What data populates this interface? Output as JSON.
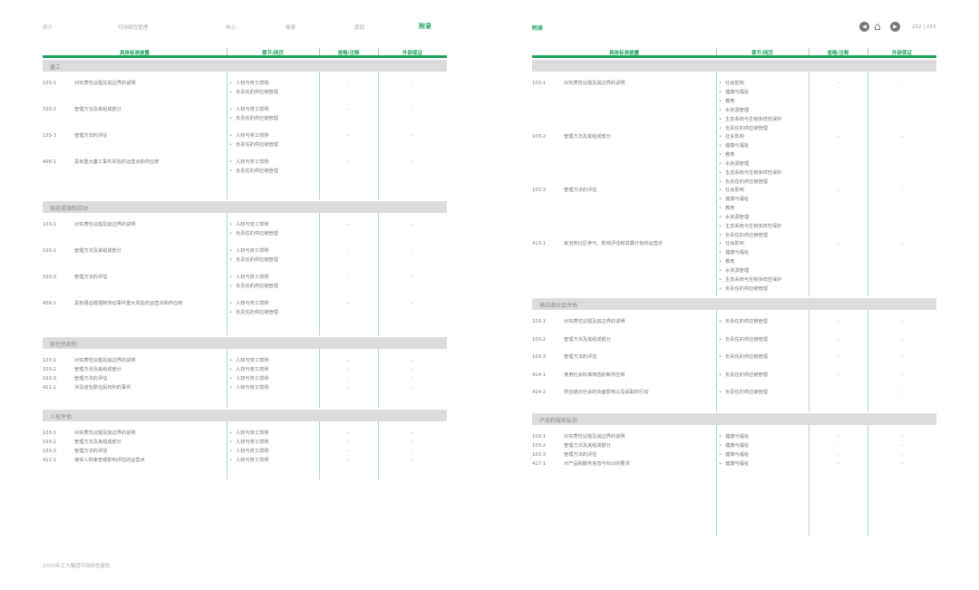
{
  "nav": {
    "items": [
      "简介",
      "可持续性管理",
      "核心",
      "健康",
      "家园",
      "附录"
    ],
    "active": 5
  },
  "header_right": {
    "section": "附录",
    "pages": "252 | 253",
    "icons": [
      "prev-icon",
      "home-icon",
      "next-icon"
    ]
  },
  "table_headers": [
    "具体标准披露",
    "章节/网页",
    "省略/注释",
    "外部保证"
  ],
  "colors": {
    "accent": "#1fa35b",
    "bar": "#dcdcdd",
    "divider": "#a9d8c7"
  },
  "footer": "2020年正大集团可持续性报告",
  "pages": [
    {
      "sections": [
        {
          "title": "童工",
          "rows": [
            {
              "code": "103-1",
              "desc": "对实质性议题及其边界的说明",
              "chapters": [
                "人权与劳工惯例",
                "负责任的供应链管理"
              ],
              "omission": "-",
              "assurance": "-"
            },
            {
              "code": "103-2",
              "desc": "管理方法及其组成部分",
              "chapters": [
                "人权与劳工惯例",
                "负责任的供应链管理"
              ],
              "omission": "-",
              "assurance": "-"
            },
            {
              "code": "103-3",
              "desc": "管理方法的评估",
              "chapters": [
                "人权与劳工惯例",
                "负责任的供应链管理"
              ],
              "omission": "-",
              "assurance": "-"
            },
            {
              "code": "408-1",
              "desc": "具有重大童工事件风险的运营点和供应商",
              "chapters": [
                "人权与劳工惯例",
                "负责任的供应链管理"
              ],
              "omission": "-",
              "assurance": "-"
            }
          ]
        },
        {
          "title": "强迫或强制劳动",
          "rows": [
            {
              "code": "103-1",
              "desc": "对实质性议题及其边界的说明",
              "chapters": [
                "人权与劳工惯例",
                "负责任的供应链管理"
              ],
              "omission": "-",
              "assurance": "-"
            },
            {
              "code": "103-2",
              "desc": "管理方法及其组成部分",
              "chapters": [
                "人权与劳工惯例",
                "负责任的供应链管理"
              ],
              "omission": "-",
              "assurance": "-"
            },
            {
              "code": "103-3",
              "desc": "管理方法的评估",
              "chapters": [
                "人权与劳工惯例",
                "负责任的供应链管理"
              ],
              "omission": "-",
              "assurance": "-"
            },
            {
              "code": "409-1",
              "desc": "具有强迫或强制劳动事件重大风险的运营点和供应商",
              "chapters": [
                "人权与劳工惯例",
                "负责任的供应链管理"
              ],
              "omission": "-",
              "assurance": "-"
            }
          ]
        },
        {
          "title": "原住民权利",
          "rows": [
            {
              "code": "103-1",
              "desc": "对实质性议题及其边界的说明",
              "chapters": [
                "人权与劳工惯例"
              ],
              "omission": "-",
              "assurance": "-"
            },
            {
              "code": "103-2",
              "desc": "管理方法及其组成部分",
              "chapters": [
                "人权与劳工惯例"
              ],
              "omission": "-",
              "assurance": "-"
            },
            {
              "code": "103-3",
              "desc": "管理方法的评估",
              "chapters": [
                "人权与劳工惯例"
              ],
              "omission": "-",
              "assurance": "-"
            },
            {
              "code": "411-1",
              "desc": "涉及侵犯原住民权利的事件",
              "chapters": [
                "人权与劳工惯例"
              ],
              "omission": "-",
              "assurance": "-"
            }
          ]
        },
        {
          "title": "人权评估",
          "rows": [
            {
              "code": "103-1",
              "desc": "对实质性议题及其边界的说明",
              "chapters": [
                "人权与劳工惯例"
              ],
              "omission": "-",
              "assurance": "-"
            },
            {
              "code": "103-2",
              "desc": "管理方法及其组成部分",
              "chapters": [
                "人权与劳工惯例"
              ],
              "omission": "-",
              "assurance": "-"
            },
            {
              "code": "103-3",
              "desc": "管理方法的评估",
              "chapters": [
                "人权与劳工惯例"
              ],
              "omission": "-",
              "assurance": "-"
            },
            {
              "code": "412-1",
              "desc": "接受人权审查或影响评估的运营点",
              "chapters": [
                "人权与劳工惯例"
              ],
              "omission": "-",
              "assurance": "-"
            }
          ]
        }
      ]
    },
    {
      "sections": [
        {
          "title": "",
          "rows": [
            {
              "code": "103-1",
              "desc": "对实质性议题及其边界的说明",
              "chapters": [
                "社会影响",
                "健康与福祉",
                "教育",
                "水资源管理",
                "生态系统与生物多样性保护",
                "负责任的供应链管理"
              ],
              "omission": "-",
              "assurance": "-"
            },
            {
              "code": "103-2",
              "desc": "管理方法及其组成部分",
              "chapters": [
                "社会影响",
                "健康与福祉",
                "教育",
                "水资源管理",
                "生态系统与生物多样性保护",
                "负责任的供应链管理"
              ],
              "omission": "-",
              "assurance": "-"
            },
            {
              "code": "103-3",
              "desc": "管理方法的评估",
              "chapters": [
                "社会影响",
                "健康与福祉",
                "教育",
                "水资源管理",
                "生态系统与生物多样性保护",
                "负责任的供应链管理"
              ],
              "omission": "-",
              "assurance": "-"
            },
            {
              "code": "413-1",
              "desc": "有当地社区参与、影响评估和发展计划的运营点",
              "chapters": [
                "社会影响",
                "健康与福祉",
                "教育",
                "水资源管理",
                "生态系统与生物多样性保护",
                "负责任的供应链管理"
              ],
              "omission": "-",
              "assurance": "-"
            }
          ]
        },
        {
          "title": "供应商社会评估",
          "rows": [
            {
              "code": "103-1",
              "desc": "对实质性议题及其边界的说明",
              "chapters": [
                "负责任的供应链管理"
              ],
              "omission": "-",
              "assurance": "-"
            },
            {
              "code": "103-2",
              "desc": "管理方法及其组成部分",
              "chapters": [
                "负责任的供应链管理"
              ],
              "omission": "-",
              "assurance": "-"
            },
            {
              "code": "103-3",
              "desc": "管理方法的评估",
              "chapters": [
                "负责任的供应链管理"
              ],
              "omission": "-",
              "assurance": "-"
            },
            {
              "code": "414-1",
              "desc": "使用社会标准筛选的新供应商",
              "chapters": [
                "负责任的供应链管理"
              ],
              "omission": "-",
              "assurance": "-"
            },
            {
              "code": "414-2",
              "desc": "供应链对社会的负面影响以及采取的行动",
              "chapters": [
                "负责任的供应链管理"
              ],
              "omission": "-",
              "assurance": "-"
            }
          ]
        },
        {
          "title": "产品和服务标识",
          "rows": [
            {
              "code": "103-1",
              "desc": "对实质性议题及其边界的说明",
              "chapters": [
                "健康与福祉"
              ],
              "omission": "-",
              "assurance": "-"
            },
            {
              "code": "103-2",
              "desc": "管理方法及其组成部分",
              "chapters": [
                "健康与福祉"
              ],
              "omission": "-",
              "assurance": "-"
            },
            {
              "code": "103-3",
              "desc": "管理方法的评估",
              "chapters": [
                "健康与福祉"
              ],
              "omission": "-",
              "assurance": "-"
            },
            {
              "code": "417-1",
              "desc": "对产品和服务信息与标识的要求",
              "chapters": [
                "健康与福祉"
              ],
              "omission": "-",
              "assurance": "-"
            }
          ]
        }
      ]
    }
  ]
}
